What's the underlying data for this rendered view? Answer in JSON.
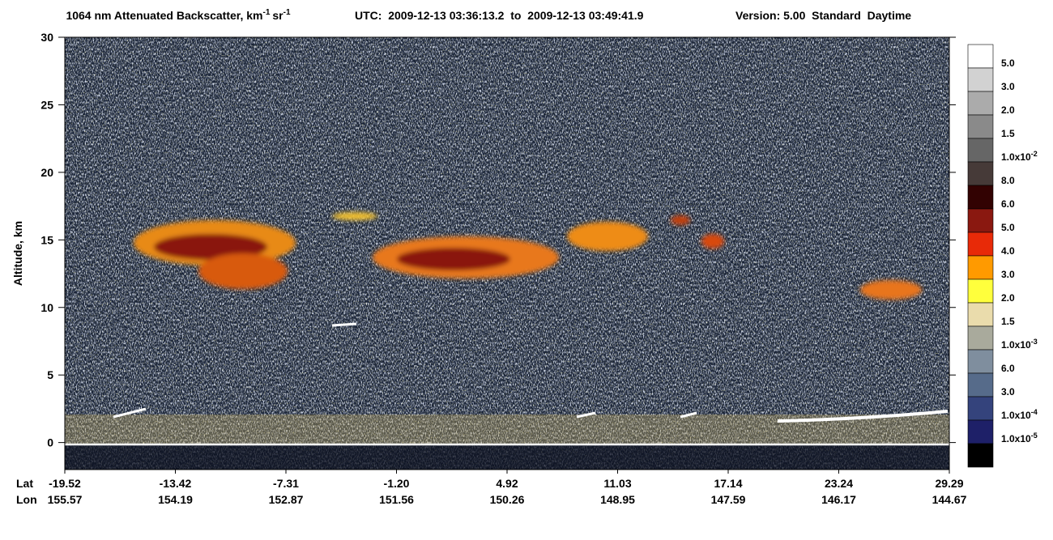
{
  "chart_data": {
    "type": "curtain",
    "title_parts": [
      "1064 nm Attenuated Backscatter, km",
      "-1",
      "sr",
      "-1"
    ],
    "utc": "UTC:  2009-12-13 03:36:13.2  to  2009-12-13 03:49:41.9",
    "version": "Version: 5.00  Standard  Daytime",
    "ylabel": "Altitude, km",
    "ylim": [
      -2,
      30
    ],
    "yticks": [
      0,
      5,
      10,
      15,
      20,
      25,
      30
    ],
    "lat_label": "Lat",
    "lon_label": "Lon",
    "lat": [
      -19.52,
      -13.42,
      -7.31,
      {
        "value": -1.2,
        "label": "-1.20"
      },
      4.92,
      11.03,
      17.14,
      23.24,
      29.29
    ],
    "lon": [
      155.57,
      154.19,
      152.87,
      151.56,
      150.26,
      148.95,
      147.59,
      146.17,
      144.67
    ],
    "colorbar": [
      {
        "label": "5.0",
        "color": "#ffffff"
      },
      {
        "label": "3.0",
        "color": "#d2d2d2"
      },
      {
        "label": "2.0",
        "color": "#ababab"
      },
      {
        "label": "1.5",
        "color": "#8a8a8a"
      },
      {
        "label": "1.0x10",
        "sup": "-2",
        "color": "#666666"
      },
      {
        "label": "8.0",
        "color": "#463a38"
      },
      {
        "label": "6.0",
        "color": "#320202"
      },
      {
        "label": "5.0",
        "color": "#8a1810"
      },
      {
        "label": "4.0",
        "color": "#e82a08"
      },
      {
        "label": "3.0",
        "color": "#ff9a00"
      },
      {
        "label": "2.0",
        "color": "#ffff3c"
      },
      {
        "label": "1.5",
        "color": "#eadcac"
      },
      {
        "label": "1.0x10",
        "sup": "-3",
        "color": "#a9aa9c"
      },
      {
        "label": "6.0",
        "color": "#7f8e9e"
      },
      {
        "label": "3.0",
        "color": "#566b8a"
      },
      {
        "label": "1.0x10",
        "sup": "-4",
        "color": "#34437c"
      },
      {
        "label": "1.0x10",
        "sup": "-5",
        "color": "#1e2068"
      },
      {
        "color": "#000000"
      }
    ]
  }
}
